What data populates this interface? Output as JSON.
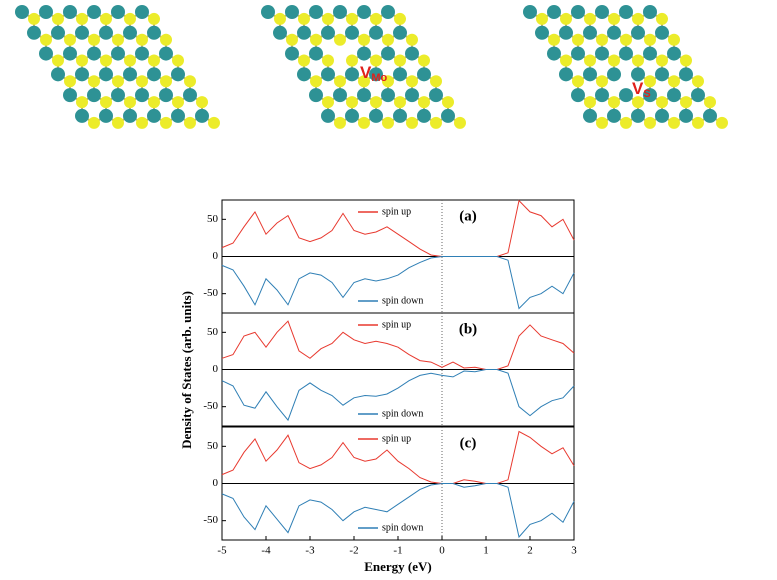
{
  "structures": [
    {
      "label": null
    },
    {
      "label": "V",
      "subscript": "Mo"
    },
    {
      "label": "V",
      "subscript": "S"
    }
  ],
  "ylabel": "Density of States (arb. units)",
  "chart_data": [
    {
      "type": "line",
      "label": "(a)",
      "xlim": [
        -5,
        3
      ],
      "ylim": [
        -76,
        76
      ],
      "yticks": [
        -50,
        0,
        50
      ],
      "x": [
        -5,
        -4.75,
        -4.5,
        -4.25,
        -4,
        -3.75,
        -3.5,
        -3.25,
        -3,
        -2.75,
        -2.5,
        -2.25,
        -2,
        -1.75,
        -1.5,
        -1.25,
        -1,
        -0.75,
        -0.5,
        -0.25,
        0,
        0.25,
        0.5,
        0.75,
        1,
        1.25,
        1.5,
        1.75,
        2,
        2.25,
        2.5,
        2.75,
        3
      ],
      "series": [
        {
          "name": "spin up",
          "color": "#e8392f",
          "values": [
            12,
            18,
            40,
            60,
            30,
            45,
            55,
            25,
            20,
            25,
            35,
            58,
            35,
            30,
            33,
            40,
            30,
            20,
            10,
            2,
            0,
            0,
            0,
            0,
            0,
            0,
            5,
            75,
            60,
            55,
            40,
            50,
            22
          ]
        },
        {
          "name": "spin down",
          "color": "#2f7fb5",
          "values": [
            -12,
            -18,
            -40,
            -65,
            -30,
            -45,
            -65,
            -30,
            -22,
            -25,
            -35,
            -55,
            -35,
            -30,
            -33,
            -30,
            -25,
            -15,
            -8,
            -2,
            0,
            0,
            0,
            0,
            0,
            0,
            -5,
            -70,
            -55,
            -50,
            -40,
            -50,
            -22
          ]
        }
      ]
    },
    {
      "type": "line",
      "label": "(b)",
      "xlim": [
        -5,
        3
      ],
      "ylim": [
        -76,
        76
      ],
      "yticks": [
        -50,
        0,
        50
      ],
      "x": [
        -5,
        -4.75,
        -4.5,
        -4.25,
        -4,
        -3.75,
        -3.5,
        -3.25,
        -3,
        -2.75,
        -2.5,
        -2.25,
        -2,
        -1.75,
        -1.5,
        -1.25,
        -1,
        -0.75,
        -0.5,
        -0.25,
        0,
        0.25,
        0.5,
        0.75,
        1,
        1.25,
        1.5,
        1.75,
        2,
        2.25,
        2.5,
        2.75,
        3
      ],
      "series": [
        {
          "name": "spin up",
          "color": "#e8392f",
          "values": [
            15,
            20,
            45,
            50,
            30,
            50,
            65,
            25,
            15,
            28,
            35,
            50,
            40,
            35,
            38,
            35,
            30,
            20,
            12,
            10,
            3,
            10,
            2,
            3,
            0,
            0,
            5,
            45,
            60,
            45,
            40,
            35,
            22
          ]
        },
        {
          "name": "spin down",
          "color": "#2f7fb5",
          "values": [
            -15,
            -22,
            -48,
            -52,
            -30,
            -50,
            -68,
            -28,
            -18,
            -28,
            -35,
            -48,
            -38,
            -35,
            -36,
            -33,
            -25,
            -15,
            -8,
            -5,
            -8,
            -10,
            -2,
            -3,
            0,
            0,
            -5,
            -50,
            -62,
            -50,
            -42,
            -38,
            -22
          ]
        }
      ]
    },
    {
      "type": "line",
      "label": "(c)",
      "xlim": [
        -5,
        3
      ],
      "ylim": [
        -76,
        76
      ],
      "yticks": [
        -50,
        0,
        50
      ],
      "xticks": [
        -5,
        -4,
        -3,
        -2,
        -1,
        0,
        1,
        2,
        3
      ],
      "xlabel": "Energy (eV)",
      "x": [
        -5,
        -4.75,
        -4.5,
        -4.25,
        -4,
        -3.75,
        -3.5,
        -3.25,
        -3,
        -2.75,
        -2.5,
        -2.25,
        -2,
        -1.75,
        -1.5,
        -1.25,
        -1,
        -0.75,
        -0.5,
        -0.25,
        0,
        0.25,
        0.5,
        0.75,
        1,
        1.25,
        1.5,
        1.75,
        2,
        2.25,
        2.5,
        2.75,
        3
      ],
      "series": [
        {
          "name": "spin up",
          "color": "#e8392f",
          "values": [
            12,
            18,
            42,
            60,
            30,
            45,
            65,
            28,
            20,
            25,
            35,
            55,
            35,
            30,
            33,
            45,
            30,
            20,
            8,
            2,
            0,
            0,
            5,
            3,
            0,
            0,
            5,
            70,
            62,
            50,
            40,
            48,
            24
          ]
        },
        {
          "name": "spin down",
          "color": "#2f7fb5",
          "values": [
            -14,
            -20,
            -45,
            -62,
            -30,
            -48,
            -66,
            -30,
            -22,
            -25,
            -35,
            -50,
            -38,
            -32,
            -35,
            -38,
            -28,
            -18,
            -8,
            -2,
            0,
            0,
            -5,
            -3,
            0,
            0,
            -5,
            -72,
            -55,
            -50,
            -40,
            -52,
            -24
          ]
        }
      ]
    }
  ]
}
